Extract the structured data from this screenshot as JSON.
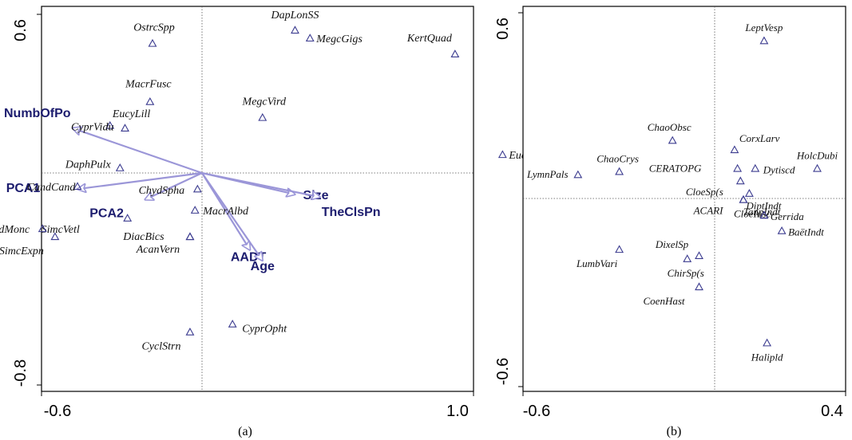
{
  "figure": {
    "panel_a_caption": "(a)",
    "panel_b_caption": "(b)"
  },
  "chart_data": [
    {
      "type": "scatter",
      "title": "",
      "xlabel": "",
      "ylabel": "",
      "xlim": [
        -0.6,
        1.0
      ],
      "ylim": [
        -0.8,
        0.6
      ],
      "x_tick_labels": [
        "-0.6",
        "1.0"
      ],
      "y_tick_labels": [
        "0.6",
        "-0.8"
      ],
      "grid": false,
      "reference_lines": "dotted lines at x=0 and y=0",
      "colors": {
        "species": "#3b3b8f",
        "arrows": "#9b96d8",
        "arrow_labels": "#1c1c6e"
      },
      "species": [
        {
          "label": "OstrcSpp",
          "x": -0.22,
          "y": 0.49
        },
        {
          "label": "DapLonSS",
          "x": 0.35,
          "y": 0.54
        },
        {
          "label": "MegcGigs",
          "x": 0.41,
          "y": 0.51
        },
        {
          "label": "KertQuad",
          "x": 0.99,
          "y": 0.45
        },
        {
          "label": "MacrFusc",
          "x": -0.23,
          "y": 0.27
        },
        {
          "label": "MegcVird",
          "x": 0.22,
          "y": 0.21
        },
        {
          "label": "EucyLill",
          "x": -0.33,
          "y": 0.17
        },
        {
          "label": "CyprVidu",
          "x": -0.39,
          "y": 0.18
        },
        {
          "label": "EucyMacr",
          "x": 1.18,
          "y": 0.07
        },
        {
          "label": "DaphPulx",
          "x": -0.35,
          "y": 0.02
        },
        {
          "label": "CandCand",
          "x": -0.52,
          "y": -0.05
        },
        {
          "label": "ChydSpha",
          "x": -0.04,
          "y": -0.06
        },
        {
          "label": "SimcVetl",
          "x": -0.32,
          "y": -0.17
        },
        {
          "label": "MacrAlbd",
          "x": -0.05,
          "y": -0.14
        },
        {
          "label": "NotdMonc",
          "x": -0.66,
          "y": -0.21
        },
        {
          "label": "SimcExpn",
          "x": -0.61,
          "y": -0.24
        },
        {
          "label": "DiacBics",
          "x": -0.07,
          "y": -0.24
        },
        {
          "label": "AcanVern",
          "x": -0.07,
          "y": -0.24
        },
        {
          "label": "CyclStrn",
          "x": -0.07,
          "y": -0.6
        },
        {
          "label": "CyprOpht",
          "x": 0.1,
          "y": -0.57
        }
      ],
      "arrows": [
        {
          "label": "NumbOfPo",
          "x": -0.54,
          "y": 0.17
        },
        {
          "label": "PCA1",
          "x": -0.52,
          "y": -0.06
        },
        {
          "label": "PCA2",
          "x": -0.25,
          "y": -0.1
        },
        {
          "label": "Size",
          "x": 0.35,
          "y": -0.08
        },
        {
          "label": "TheClsPn",
          "x": 0.45,
          "y": -0.09
        },
        {
          "label": "AADT",
          "x": 0.17,
          "y": -0.29
        },
        {
          "label": "Age",
          "x": 0.22,
          "y": -0.33
        }
      ]
    },
    {
      "type": "scatter",
      "title": "",
      "xlabel": "",
      "ylabel": "",
      "xlim": [
        -0.6,
        0.4
      ],
      "ylim": [
        -0.6,
        0.6
      ],
      "x_tick_labels": [
        "-0.6",
        "0.4"
      ],
      "y_tick_labels": [
        "0.6",
        "-0.6"
      ],
      "grid": false,
      "reference_lines": "dotted lines at x=0 and y=0",
      "colors": {
        "species": "#3b3b8f"
      },
      "species": [
        {
          "label": "LeptVesp",
          "x": 0.17,
          "y": 0.51
        },
        {
          "label": "ChaoObsc",
          "x": -0.14,
          "y": 0.19
        },
        {
          "label": "CorxLarv",
          "x": 0.07,
          "y": 0.16
        },
        {
          "label": "ChaoCrys",
          "x": -0.32,
          "y": 0.09
        },
        {
          "label": "CERATOPG",
          "x": 0.08,
          "y": 0.1
        },
        {
          "label": "HolcDubi",
          "x": 0.35,
          "y": 0.1
        },
        {
          "label": "LymnPals",
          "x": -0.46,
          "y": 0.08
        },
        {
          "label": "Dytiscd",
          "x": 0.14,
          "y": 0.1
        },
        {
          "label": "CloeSp(s",
          "x": 0.09,
          "y": 0.06
        },
        {
          "label": "DiptIndt",
          "x": 0.12,
          "y": 0.02
        },
        {
          "label": "CloeInsc",
          "x": 0.1,
          "y": 0.0
        },
        {
          "label": "ACARI",
          "x": 0.1,
          "y": 0.0
        },
        {
          "label": "TanpIndt",
          "x": 0.17,
          "y": -0.05
        },
        {
          "label": "Gerrida",
          "x": 0.17,
          "y": -0.05
        },
        {
          "label": "BaëtIndt",
          "x": 0.23,
          "y": -0.1
        },
        {
          "label": "LumbVari",
          "x": -0.32,
          "y": -0.16
        },
        {
          "label": "DixelSp",
          "x": -0.05,
          "y": -0.18
        },
        {
          "label": "ChirSp(s",
          "x": -0.09,
          "y": -0.19
        },
        {
          "label": "CoenHast",
          "x": -0.05,
          "y": -0.28
        },
        {
          "label": "Halipld",
          "x": 0.18,
          "y": -0.46
        }
      ]
    }
  ]
}
